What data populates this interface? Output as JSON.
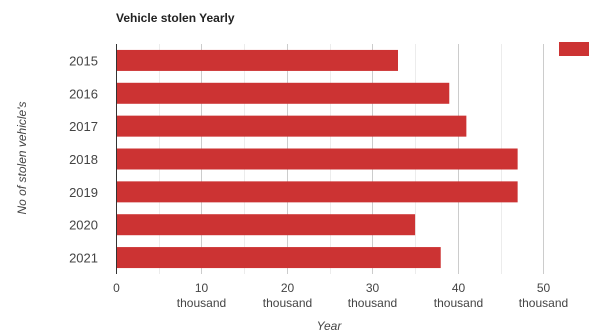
{
  "chart_data": {
    "type": "bar",
    "orientation": "horizontal",
    "title": "Vehicle stolen Yearly",
    "xlabel": "Year",
    "ylabel": "No of stolen vehicle's",
    "categories": [
      "2015",
      "2016",
      "2017",
      "2018",
      "2019",
      "2020",
      "2021"
    ],
    "series": [
      {
        "values": [
          33000,
          39000,
          41000,
          47000,
          47000,
          35000,
          38000
        ]
      }
    ],
    "xlim": [
      0,
      55000
    ],
    "x_ticks": [
      {
        "value": 0,
        "label": "0",
        "sublabel": ""
      },
      {
        "value": 10000,
        "label": "10",
        "sublabel": "thousand"
      },
      {
        "value": 20000,
        "label": "20",
        "sublabel": "thousand"
      },
      {
        "value": 30000,
        "label": "30",
        "sublabel": "thousand"
      },
      {
        "value": 40000,
        "label": "40",
        "sublabel": "thousand"
      },
      {
        "value": 50000,
        "label": "50",
        "sublabel": "thousand"
      }
    ],
    "minor_gridline_step": 5000,
    "grid": true,
    "legend": {
      "position": "top-right"
    },
    "colors": {
      "bar": "#cc3333",
      "major_grid": "#cccccc",
      "minor_grid": "#ececec",
      "axis": "#333333",
      "text": "#444444",
      "title": "#222222"
    }
  }
}
